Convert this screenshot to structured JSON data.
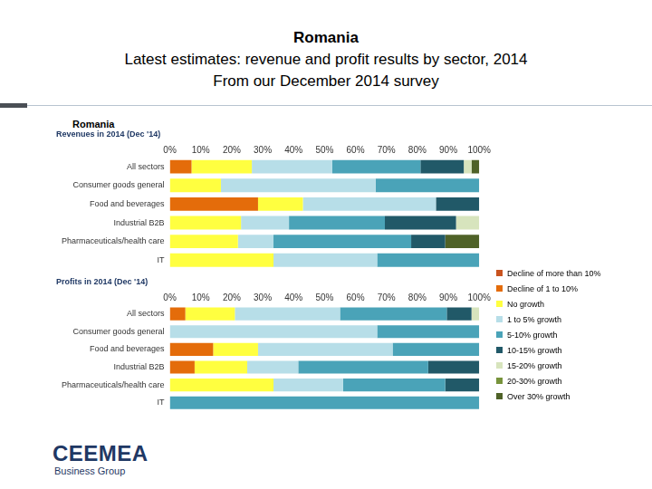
{
  "slide": {
    "title": "Romania",
    "subtitle": [
      "Latest estimates: revenue and profit results by sector, 2014",
      "From our December 2014 survey"
    ]
  },
  "panel_title": "Romania",
  "logo": {
    "name": "CEEMEA",
    "tagline": "Business Group"
  },
  "chart_data": [
    {
      "type": "bar",
      "orientation": "horizontal",
      "stacked": true,
      "grid": false,
      "title": "Revenues in 2014 (Dec '14)",
      "categories": [
        "All sectors",
        "Consumer goods general",
        "Food and beverages",
        "Industrial B2B",
        "Pharmaceuticals/health care",
        "IT"
      ],
      "xlim": [
        0,
        100
      ],
      "xticks": [
        {
          "value": 0,
          "label": "0%"
        },
        {
          "value": 10,
          "label": "10%"
        },
        {
          "value": 20,
          "label": "20%"
        },
        {
          "value": 30,
          "label": "30%"
        },
        {
          "value": 40,
          "label": "40%"
        },
        {
          "value": 50,
          "label": "50%"
        },
        {
          "value": 60,
          "label": "60%"
        },
        {
          "value": 70,
          "label": "70%"
        },
        {
          "value": 80,
          "label": "80%"
        },
        {
          "value": 90,
          "label": "90%"
        },
        {
          "value": 100,
          "label": "100%"
        }
      ],
      "series": [
        {
          "name": "Decline of more than 10%",
          "color": "#c9531f",
          "values": [
            0,
            0,
            0,
            0,
            0,
            0
          ]
        },
        {
          "name": "Decline of 1 to 10%",
          "color": "#e46c0a",
          "values": [
            7,
            0,
            28.5,
            0,
            0,
            0
          ]
        },
        {
          "name": "No growth",
          "color": "#ffff40",
          "values": [
            19.5,
            16.5,
            14.5,
            23,
            22,
            33.5
          ]
        },
        {
          "name": "1 to 5% growth",
          "color": "#b7dee8",
          "values": [
            26,
            50,
            43,
            15.5,
            11.5,
            33.5
          ]
        },
        {
          "name": "5-10% growth",
          "color": "#4aa3b8",
          "values": [
            28.5,
            33.5,
            0,
            31,
            44.5,
            33
          ]
        },
        {
          "name": "10-15% growth",
          "color": "#215968",
          "values": [
            14,
            0,
            14,
            23,
            11,
            0
          ]
        },
        {
          "name": "15-20% growth",
          "color": "#d7e4bd",
          "values": [
            2.5,
            0,
            0,
            7.5,
            0,
            0
          ]
        },
        {
          "name": "20-30% growth",
          "color": "#77933c",
          "values": [
            0,
            0,
            0,
            0,
            0,
            0
          ]
        },
        {
          "name": "Over 30% growth",
          "color": "#4f6228",
          "values": [
            2.5,
            0,
            0,
            0,
            11,
            0
          ]
        }
      ]
    },
    {
      "type": "bar",
      "orientation": "horizontal",
      "stacked": true,
      "grid": false,
      "legend": "right",
      "title": "Profits in 2014 (Dec '14)",
      "categories": [
        "All sectors",
        "Consumer goods general",
        "Food and beverages",
        "Industrial B2B",
        "Pharmaceuticals/health care",
        "IT"
      ],
      "xlim": [
        0,
        100
      ],
      "xticks": [
        {
          "value": 0,
          "label": "0%"
        },
        {
          "value": 10,
          "label": "10%"
        },
        {
          "value": 20,
          "label": "20%"
        },
        {
          "value": 30,
          "label": "30%"
        },
        {
          "value": 40,
          "label": "40%"
        },
        {
          "value": 50,
          "label": "50%"
        },
        {
          "value": 60,
          "label": "60%"
        },
        {
          "value": 70,
          "label": "70%"
        },
        {
          "value": 80,
          "label": "80%"
        },
        {
          "value": 90,
          "label": "90%"
        },
        {
          "value": 100,
          "label": "100%"
        }
      ],
      "series": [
        {
          "name": "Decline of more than 10%",
          "color": "#c9531f",
          "values": [
            0,
            0,
            0,
            0,
            0,
            0
          ]
        },
        {
          "name": "Decline of 1 to 10%",
          "color": "#e46c0a",
          "values": [
            5,
            0,
            14,
            8,
            0,
            0
          ]
        },
        {
          "name": "No growth",
          "color": "#ffff40",
          "values": [
            16,
            0,
            14.5,
            17,
            33.5,
            0
          ]
        },
        {
          "name": "1 to 5% growth",
          "color": "#b7dee8",
          "values": [
            34,
            67,
            43.5,
            16.5,
            22.5,
            0
          ]
        },
        {
          "name": "5-10% growth",
          "color": "#4aa3b8",
          "values": [
            34.5,
            33,
            28,
            42,
            33,
            100
          ]
        },
        {
          "name": "10-15% growth",
          "color": "#215968",
          "values": [
            8,
            0,
            0,
            16.5,
            11,
            0
          ]
        },
        {
          "name": "15-20% growth",
          "color": "#d7e4bd",
          "values": [
            2.5,
            0,
            0,
            0,
            0,
            0
          ]
        },
        {
          "name": "20-30% growth",
          "color": "#77933c",
          "values": [
            0,
            0,
            0,
            0,
            0,
            0
          ]
        },
        {
          "name": "Over 30% growth",
          "color": "#4f6228",
          "values": [
            0,
            0,
            0,
            0,
            0,
            0
          ]
        }
      ]
    }
  ]
}
